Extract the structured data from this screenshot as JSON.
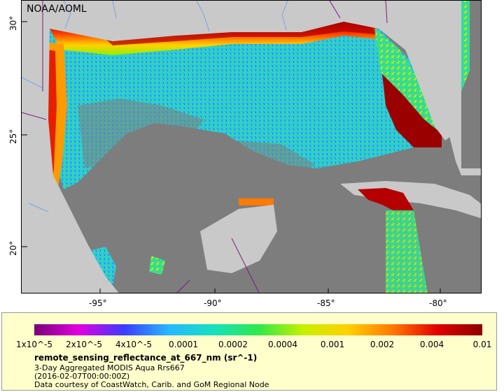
{
  "map": {
    "credit": "NOAA/AOML",
    "x_axis": {
      "labels": [
        "-95°",
        "-90°",
        "-85°",
        "-80°"
      ]
    },
    "y_axis": {
      "labels": [
        "30°",
        "25°",
        "20°"
      ]
    },
    "colors": {
      "land": "#c8c8c8",
      "no_data": "#7d7d7d",
      "ocean_low": "#24c6f0",
      "ocean_mid": "#33e28a",
      "coastal_high": "#b40000"
    }
  },
  "legend": {
    "tick_labels": [
      "1x10^-5",
      "2x10^-5",
      "4x10^-5",
      "0.0001",
      "0.0002",
      "0.0004",
      "0.001",
      "0.002",
      "0.004",
      "0.01"
    ],
    "variable": "remote_sensing_reflectance_at_667_nm (sr^-1)",
    "line1": "3-Day Aggregated MODIS Aqua Rrs667",
    "line2": "(2016-02-07T00:00:00Z)",
    "line3": "Data courtesy of CoastWatch, Carib. and GoM Regional Node",
    "colormap": [
      "#7a007a",
      "#e000e0",
      "#3b3bff",
      "#26b8ff",
      "#16e0c0",
      "#2ee84a",
      "#c8f000",
      "#ffd000",
      "#ff7800",
      "#e00000",
      "#8c0000"
    ]
  }
}
